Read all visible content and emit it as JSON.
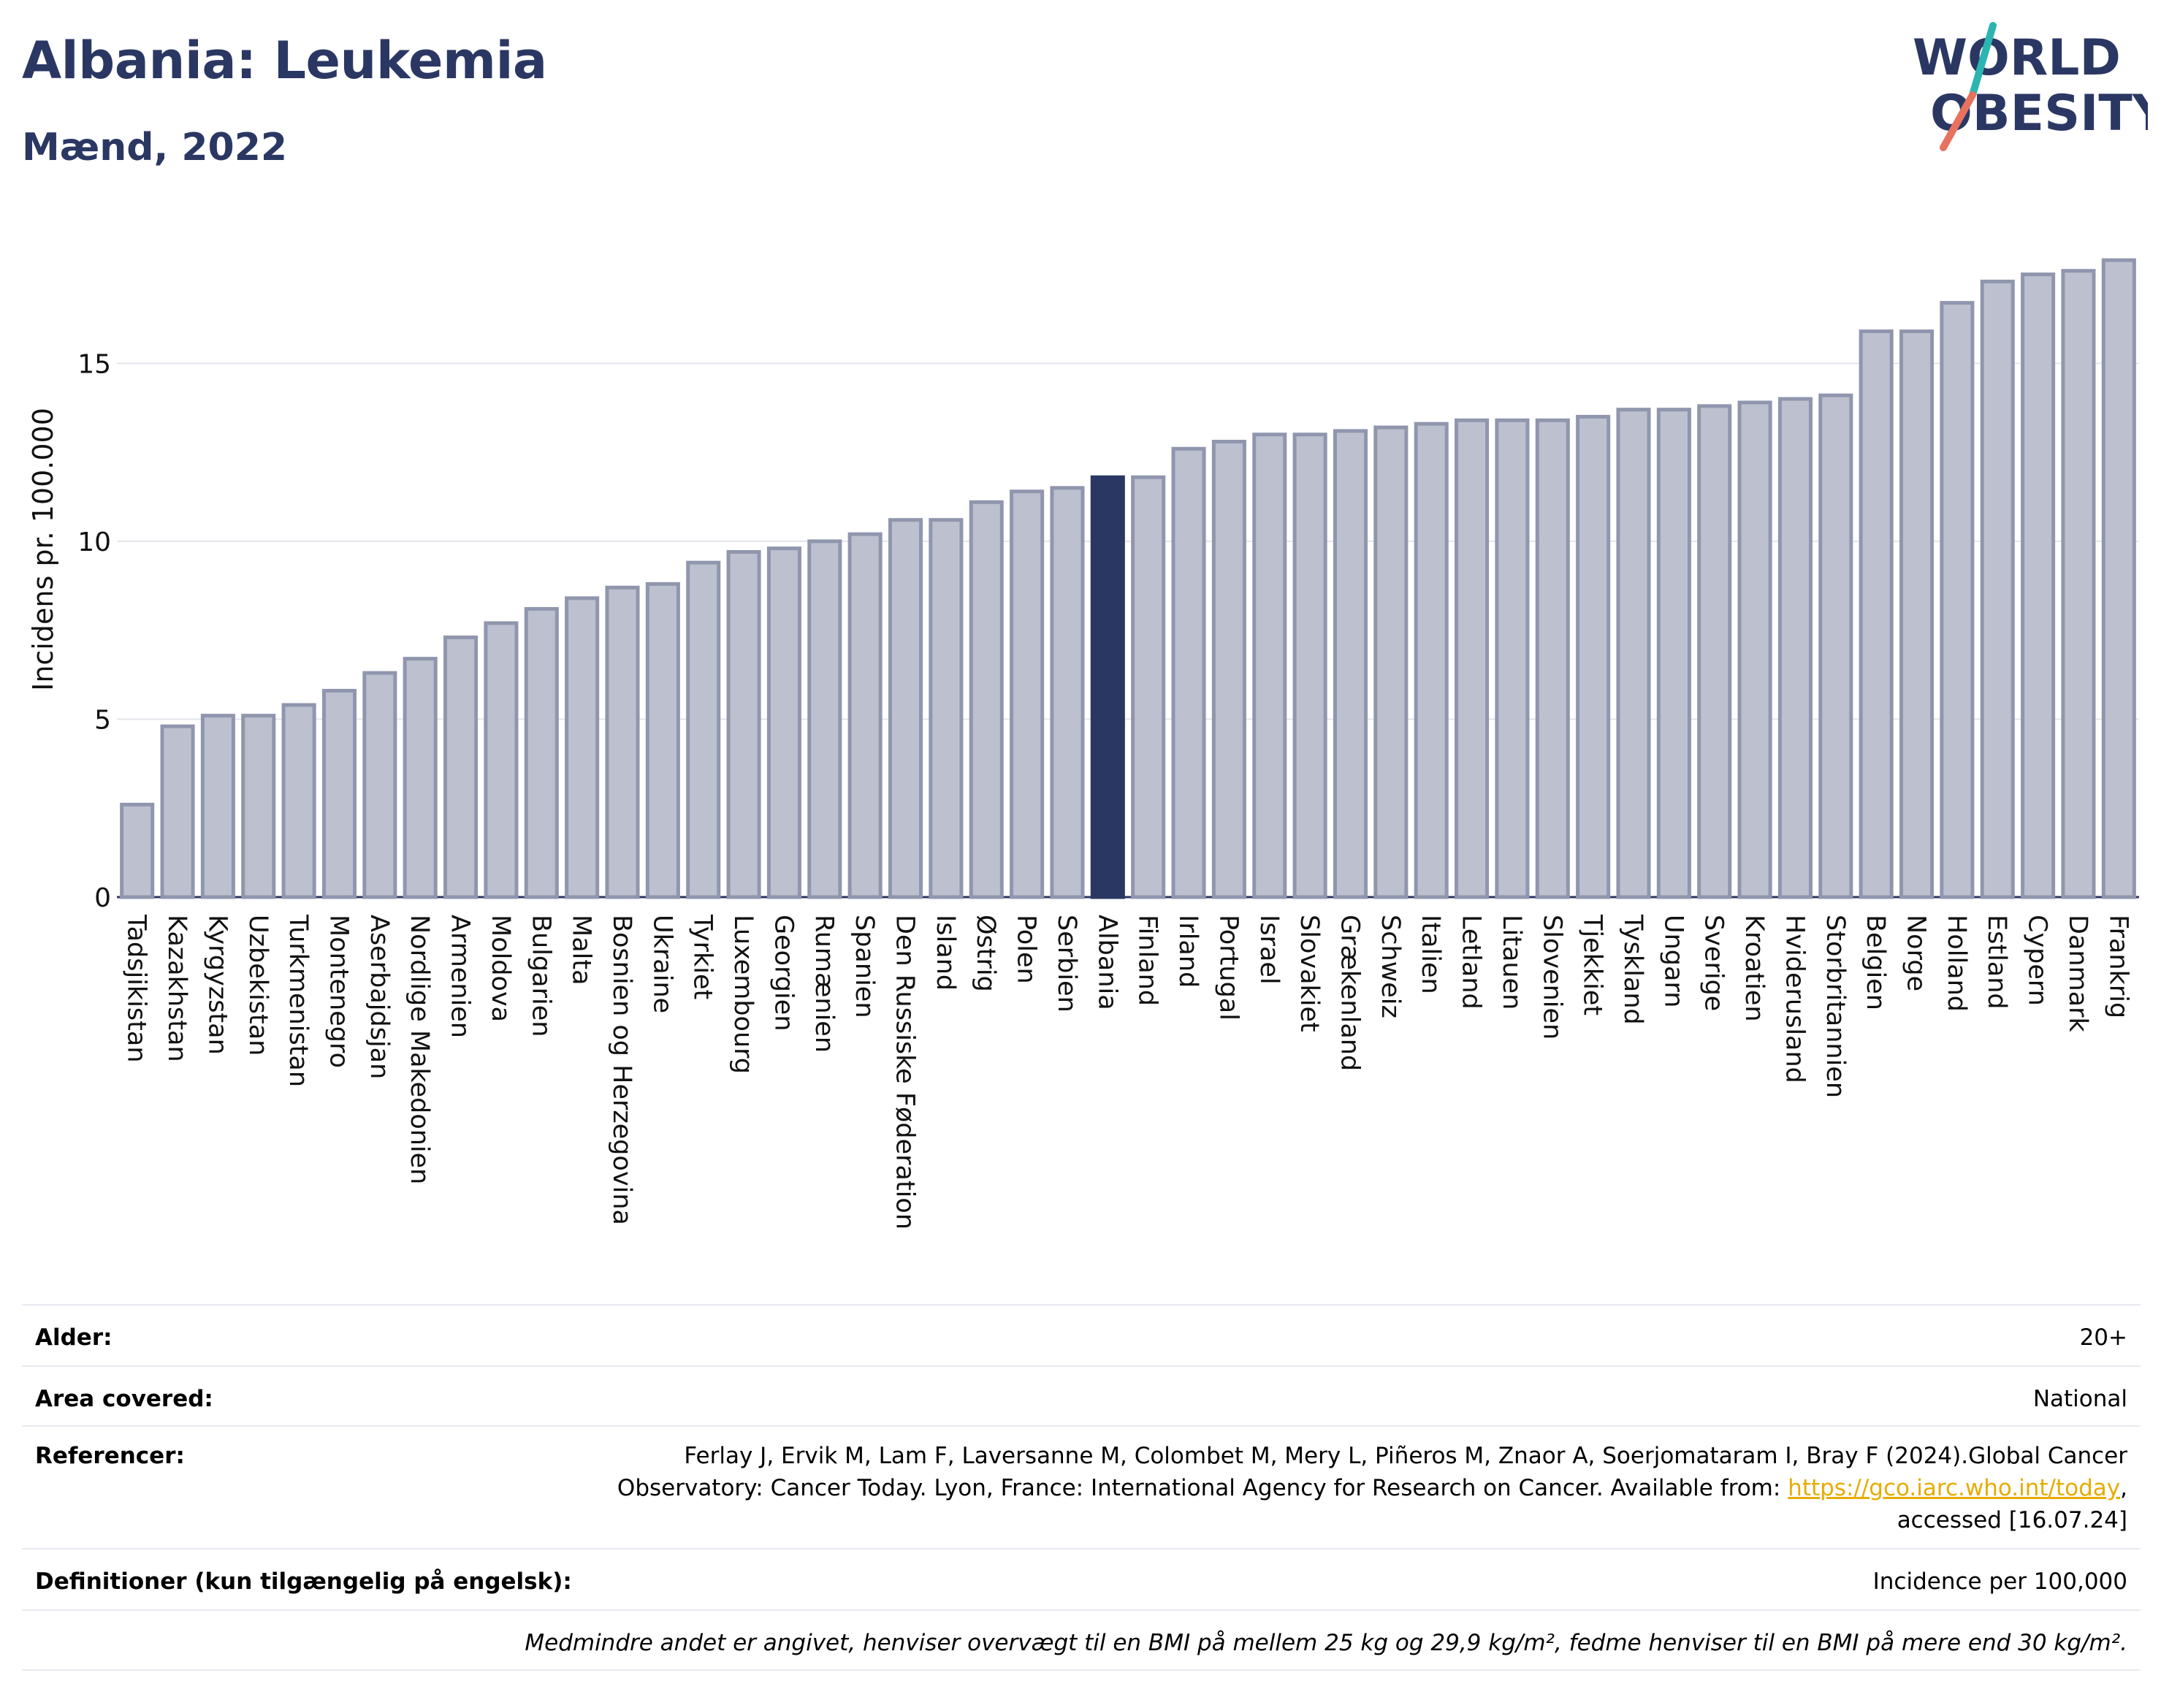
{
  "header": {
    "title": "Albania: Leukemia",
    "subtitle": "Mænd, 2022",
    "logo_line1": "WORLD",
    "logo_line2": "OBESITY"
  },
  "colors": {
    "bar": "#bcc0cf",
    "bar_border": "#9096ad",
    "highlight": "#2b3763",
    "grid": "#e3e5ec",
    "title": "#2b3763",
    "logo_red": "#e8715f",
    "logo_teal": "#2bb5b0"
  },
  "chart_data": {
    "type": "bar",
    "title": "Albania: Leukemia",
    "subtitle": "Mænd, 2022",
    "ylabel": "Incidens pr. 100.000",
    "xlabel": "",
    "ylim": [
      0,
      18.6
    ],
    "yticks": [
      0,
      5,
      10,
      15
    ],
    "grid": true,
    "highlight": "Albania",
    "categories": [
      "Tadsjikistan",
      "Kazakhstan",
      "Kyrgyzstan",
      "Uzbekistan",
      "Turkmenistan",
      "Montenegro",
      "Aserbajdsjan",
      "Nordlige Makedonien",
      "Armenien",
      "Moldova",
      "Bulgarien",
      "Malta",
      "Bosnien og Herzegovina",
      "Ukraine",
      "Tyrkiet",
      "Luxembourg",
      "Georgien",
      "Rumænien",
      "Spanien",
      "Den Russiske Føderation",
      "Island",
      "Østrig",
      "Polen",
      "Serbien",
      "Albania",
      "Finland",
      "Irland",
      "Portugal",
      "Israel",
      "Slovakiet",
      "Grækenland",
      "Schweiz",
      "Italien",
      "Letland",
      "Litauen",
      "Slovenien",
      "Tjekkiet",
      "Tyskland",
      "Ungarn",
      "Sverige",
      "Kroatien",
      "Hviderusland",
      "Storbritannien",
      "Belgien",
      "Norge",
      "Holland",
      "Estland",
      "Cypern",
      "Danmark",
      "Frankrig"
    ],
    "values": [
      2.6,
      4.8,
      5.1,
      5.1,
      5.4,
      5.8,
      6.3,
      6.7,
      7.3,
      7.7,
      8.1,
      8.4,
      8.7,
      8.8,
      9.4,
      9.7,
      9.8,
      10.0,
      10.2,
      10.6,
      10.6,
      11.1,
      11.4,
      11.5,
      11.8,
      11.8,
      12.6,
      12.8,
      13.0,
      13.0,
      13.1,
      13.2,
      13.3,
      13.4,
      13.4,
      13.4,
      13.5,
      13.7,
      13.7,
      13.8,
      13.9,
      14.0,
      14.1,
      15.9,
      15.9,
      16.7,
      17.3,
      17.5,
      17.6,
      17.9
    ]
  },
  "info": {
    "age_label": "Alder:",
    "age_value": "20+",
    "area_label": "Area covered:",
    "area_value": "National",
    "ref_label": "Referencer:",
    "ref_line1": "Ferlay J, Ervik M, Lam F, Laversanne M, Colombet M, Mery L, Piñeros M, Znaor A, Soerjomataram I, Bray F (2024).Global Cancer",
    "ref_line2": "Observatory: Cancer Today. Lyon, France: International Agency for Research on Cancer. Available from:",
    "ref_link": "https://gco.iarc.who.int/today",
    "ref_line2_end": ",",
    "ref_line3": "accessed [16.07.24]",
    "def_label": "Definitioner (kun tilgængelig på engelsk):",
    "def_value": "Incidence per 100,000",
    "footnote": "Medmindre andet er angivet, henviser overvægt til en BMI på mellem 25 kg og 29,9 kg/m², fedme henviser til en BMI på mere end 30 kg/m²."
  }
}
